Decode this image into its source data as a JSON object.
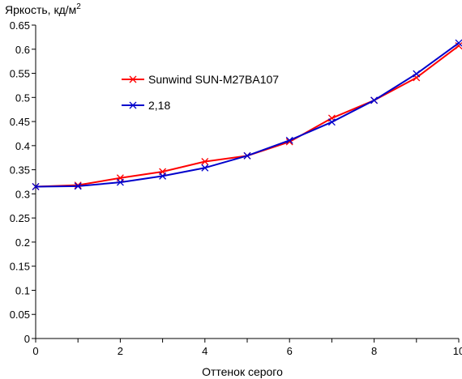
{
  "chart_data": {
    "type": "line",
    "title": "",
    "ylabel": "Яркость, кд/м",
    "ylabel_superscript": "2",
    "xlabel": "Оттенок серого",
    "xlim": [
      0,
      10
    ],
    "ylim": [
      0,
      0.65
    ],
    "x_ticks": [
      "0",
      "2",
      "4",
      "6",
      "8",
      "10"
    ],
    "y_ticks": [
      "0",
      "0.05",
      "0.1",
      "0.15",
      "0.2",
      "0.25",
      "0.3",
      "0.35",
      "0.4",
      "0.45",
      "0.5",
      "0.55",
      "0.6",
      "0.65"
    ],
    "grid": false,
    "legend_position": "upper-left inside plot",
    "x": [
      0,
      1,
      2,
      3,
      4,
      5,
      6,
      7,
      8,
      9,
      10
    ],
    "series": [
      {
        "name": "Sunwind SUN-M27BA107",
        "color": "#ff0000",
        "marker": "x",
        "values": [
          0.315,
          0.318,
          0.333,
          0.346,
          0.367,
          0.379,
          0.408,
          0.457,
          0.494,
          0.541,
          0.607
        ]
      },
      {
        "name": "2,18",
        "color": "#0000cc",
        "marker": "x",
        "values": [
          0.315,
          0.316,
          0.324,
          0.337,
          0.354,
          0.379,
          0.411,
          0.449,
          0.494,
          0.549,
          0.613
        ]
      }
    ]
  }
}
